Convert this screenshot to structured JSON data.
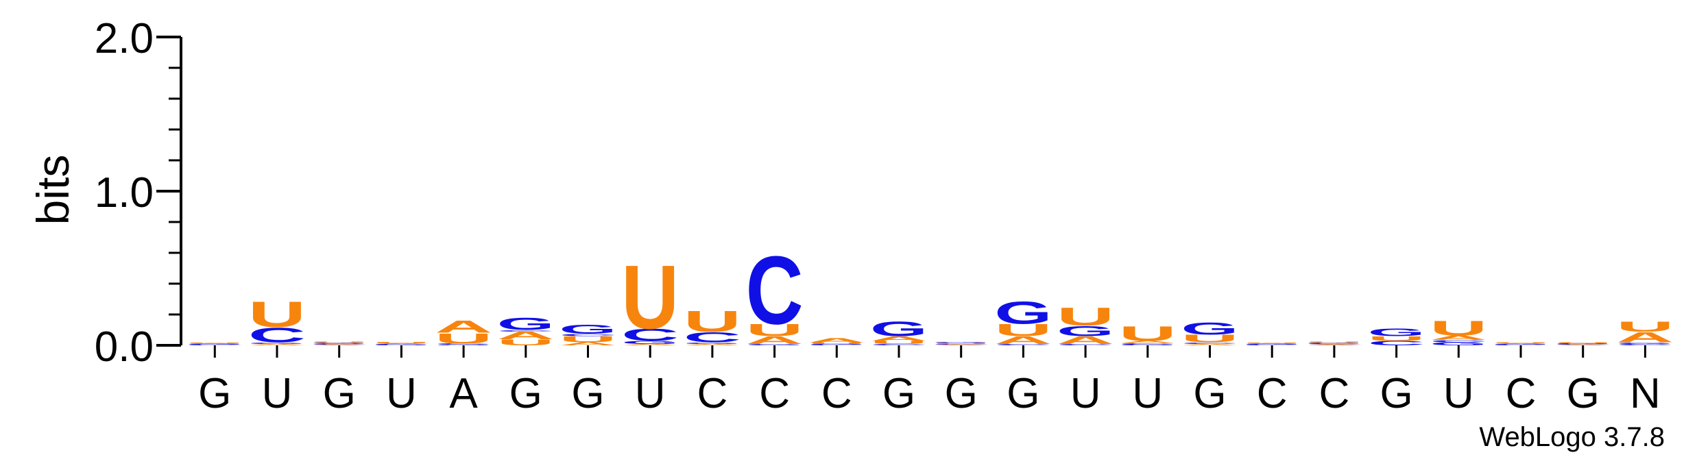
{
  "chart_data": {
    "type": "sequence-logo",
    "ylabel": "bits",
    "ylim": [
      0,
      2.0
    ],
    "yticks": [
      "0.0",
      "1.0",
      "2.0"
    ],
    "x_labels": [
      "G",
      "U",
      "G",
      "U",
      "A",
      "G",
      "G",
      "U",
      "C",
      "C",
      "C",
      "G",
      "G",
      "G",
      "U",
      "U",
      "G",
      "C",
      "C",
      "G",
      "U",
      "C",
      "G",
      "N"
    ],
    "colors": {
      "A": "#f7850d",
      "U": "#f7850d",
      "C": "#1010e6",
      "G": "#1010e6"
    },
    "stacks": [
      [
        [
          "C",
          0.004
        ],
        [
          "G",
          0.004
        ],
        [
          "A",
          0.004
        ],
        [
          "U",
          0.004
        ]
      ],
      [
        [
          "A",
          0.01
        ],
        [
          "G",
          0.01
        ],
        [
          "C",
          0.1
        ],
        [
          "U",
          0.17
        ]
      ],
      [
        [
          "A",
          0.005
        ],
        [
          "C",
          0.006
        ],
        [
          "G",
          0.006
        ],
        [
          "U",
          0.006
        ]
      ],
      [
        [
          "G",
          0.004
        ],
        [
          "C",
          0.004
        ],
        [
          "A",
          0.006
        ],
        [
          "U",
          0.01
        ]
      ],
      [
        [
          "G",
          0.006
        ],
        [
          "C",
          0.006
        ],
        [
          "U",
          0.07
        ],
        [
          "A",
          0.08
        ]
      ],
      [
        [
          "U",
          0.04
        ],
        [
          "A",
          0.05
        ],
        [
          "C",
          0.01
        ],
        [
          "G",
          0.08
        ]
      ],
      [
        [
          "A",
          0.02
        ],
        [
          "U",
          0.04
        ],
        [
          "C",
          0.015
        ],
        [
          "G",
          0.06
        ]
      ],
      [
        [
          "A",
          0.01
        ],
        [
          "G",
          0.02
        ],
        [
          "C",
          0.08
        ],
        [
          "U",
          0.43
        ]
      ],
      [
        [
          "A",
          0.01
        ],
        [
          "G",
          0.01
        ],
        [
          "C",
          0.07
        ],
        [
          "U",
          0.14
        ]
      ],
      [
        [
          "G",
          0.01
        ],
        [
          "A",
          0.05
        ],
        [
          "U",
          0.08
        ],
        [
          "C",
          0.46
        ]
      ],
      [
        [
          "C",
          0.004
        ],
        [
          "G",
          0.004
        ],
        [
          "U",
          0.01
        ],
        [
          "A",
          0.03
        ]
      ],
      [
        [
          "C",
          0.01
        ],
        [
          "U",
          0.02
        ],
        [
          "A",
          0.03
        ],
        [
          "G",
          0.1
        ]
      ],
      [
        [
          "A",
          0.005
        ],
        [
          "C",
          0.005
        ],
        [
          "U",
          0.006
        ],
        [
          "G",
          0.006
        ]
      ],
      [
        [
          "C",
          0.01
        ],
        [
          "A",
          0.05
        ],
        [
          "U",
          0.08
        ],
        [
          "G",
          0.15
        ]
      ],
      [
        [
          "C",
          0.01
        ],
        [
          "A",
          0.05
        ],
        [
          "G",
          0.07
        ],
        [
          "U",
          0.12
        ]
      ],
      [
        [
          "G",
          0.005
        ],
        [
          "C",
          0.01
        ],
        [
          "A",
          0.015
        ],
        [
          "U",
          0.1
        ]
      ],
      [
        [
          "A",
          0.01
        ],
        [
          "C",
          0.01
        ],
        [
          "U",
          0.05
        ],
        [
          "G",
          0.08
        ]
      ],
      [
        [
          "C",
          0.004
        ],
        [
          "G",
          0.004
        ],
        [
          "A",
          0.004
        ],
        [
          "U",
          0.004
        ]
      ],
      [
        [
          "A",
          0.006
        ],
        [
          "C",
          0.006
        ],
        [
          "G",
          0.006
        ],
        [
          "U",
          0.006
        ]
      ],
      [
        [
          "C",
          0.03
        ],
        [
          "U",
          0.03
        ],
        [
          "G",
          0.05
        ]
      ],
      [
        [
          "G",
          0.02
        ],
        [
          "C",
          0.015
        ],
        [
          "A",
          0.03
        ],
        [
          "U",
          0.1
        ]
      ],
      [
        [
          "C",
          0.004
        ],
        [
          "G",
          0.004
        ],
        [
          "A",
          0.006
        ],
        [
          "U",
          0.006
        ]
      ],
      [
        [
          "A",
          0.004
        ],
        [
          "C",
          0.004
        ],
        [
          "G",
          0.006
        ],
        [
          "U",
          0.006
        ]
      ],
      [
        [
          "C",
          0.01
        ],
        [
          "G",
          0.01
        ],
        [
          "A",
          0.07
        ],
        [
          "U",
          0.07
        ]
      ]
    ]
  },
  "footer": {
    "credit": "WebLogo 3.7.8"
  }
}
